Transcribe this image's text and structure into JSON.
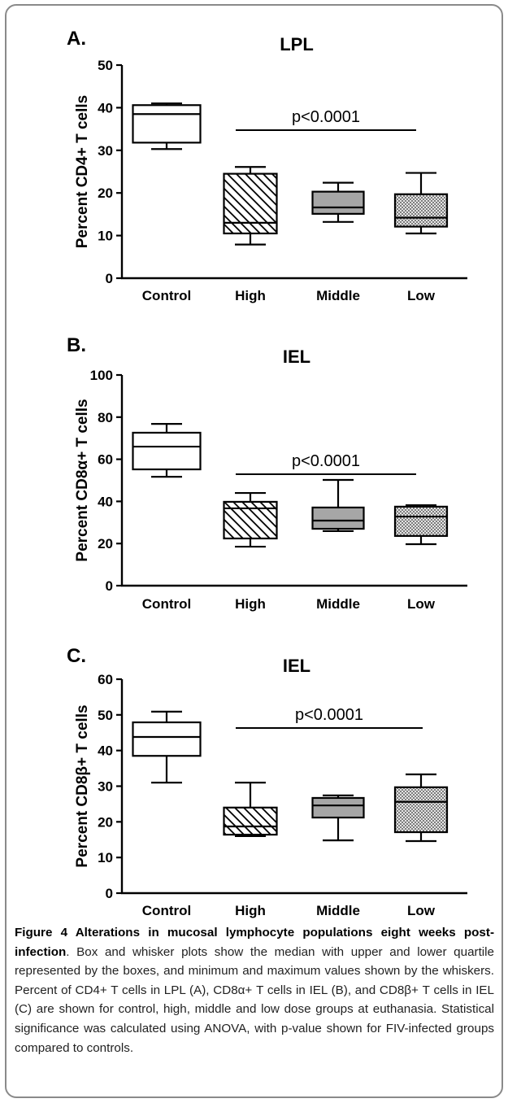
{
  "chart_data": [
    {
      "type": "box",
      "panel_label": "A.",
      "title": "LPL",
      "ylabel": "Percent CD4+ T cells",
      "ylim": [
        0,
        50
      ],
      "yticks": [
        0,
        10,
        20,
        30,
        40,
        50
      ],
      "categories": [
        "Control",
        "High",
        "Middle",
        "Low"
      ],
      "boxes": [
        {
          "min": 30.3,
          "q1": 31.8,
          "median": 38.5,
          "q3": 40.6,
          "max": 41.0
        },
        {
          "min": 7.9,
          "q1": 10.5,
          "median": 13.0,
          "q3": 24.5,
          "max": 26.1
        },
        {
          "min": 13.2,
          "q1": 15.1,
          "median": 16.6,
          "q3": 20.3,
          "max": 22.4
        },
        {
          "min": 10.5,
          "q1": 12.1,
          "median": 14.2,
          "q3": 19.7,
          "max": 24.7
        }
      ],
      "box_fills": [
        "#ffffff",
        "hatch",
        "#a6a6a6",
        "stipple"
      ],
      "annotations": [
        {
          "text": "p<0.0001",
          "span": [
            "High",
            "Low"
          ]
        }
      ],
      "grid": false
    },
    {
      "type": "box",
      "panel_label": "B.",
      "title": "IEL",
      "ylabel": "Percent CD8α+ T cells",
      "ylim": [
        0,
        100
      ],
      "yticks": [
        0,
        20,
        40,
        60,
        80,
        100
      ],
      "categories": [
        "Control",
        "High",
        "Middle",
        "Low"
      ],
      "boxes": [
        {
          "min": 51.7,
          "q1": 55.2,
          "median": 66.0,
          "q3": 72.6,
          "max": 76.8
        },
        {
          "min": 18.5,
          "q1": 22.4,
          "median": 36.7,
          "q3": 39.8,
          "max": 44.0
        },
        {
          "min": 25.9,
          "q1": 27.0,
          "median": 30.9,
          "q3": 37.1,
          "max": 50.2
        },
        {
          "min": 19.7,
          "q1": 23.6,
          "median": 32.8,
          "q3": 37.5,
          "max": 38.2
        }
      ],
      "box_fills": [
        "#ffffff",
        "hatch",
        "#a6a6a6",
        "stipple"
      ],
      "annotations": [
        {
          "text": "p<0.0001",
          "span": [
            "High",
            "Low"
          ]
        }
      ],
      "grid": false
    },
    {
      "type": "box",
      "panel_label": "C.",
      "title": "IEL",
      "ylabel": "Percent CD8β+ T cells",
      "ylim": [
        0,
        60
      ],
      "yticks": [
        0,
        10,
        20,
        30,
        40,
        50,
        60
      ],
      "categories": [
        "Control",
        "High",
        "Middle",
        "Low"
      ],
      "boxes": [
        {
          "min": 31.0,
          "q1": 38.5,
          "median": 43.8,
          "q3": 47.9,
          "max": 50.9
        },
        {
          "min": 16.0,
          "q1": 16.4,
          "median": 18.7,
          "q3": 24.0,
          "max": 31.0
        },
        {
          "min": 14.8,
          "q1": 21.2,
          "median": 24.6,
          "q3": 26.7,
          "max": 27.4
        },
        {
          "min": 14.6,
          "q1": 17.1,
          "median": 25.6,
          "q3": 29.7,
          "max": 33.3
        }
      ],
      "box_fills": [
        "#ffffff",
        "hatch",
        "#a6a6a6",
        "stipple"
      ],
      "annotations": [
        {
          "text": "p<0.0001",
          "span": [
            "High",
            "Low"
          ]
        }
      ],
      "grid": false
    }
  ],
  "caption": {
    "heading": "Figure 4 Alterations in mucosal lymphocyte populations eight weeks post-infection",
    "body": ". Box and whisker plots show the median with upper and lower quartile represented by the boxes, and minimum and maximum values shown by the whiskers. Percent of CD4+ T cells in LPL (A), CD8α+ T cells in IEL (B), and CD8β+ T cells in IEL (C) are shown for control, high, middle and low dose groups at euthanasia. Statistical significance was calculated using ANOVA, with p-value shown for FIV-infected groups compared to controls."
  }
}
